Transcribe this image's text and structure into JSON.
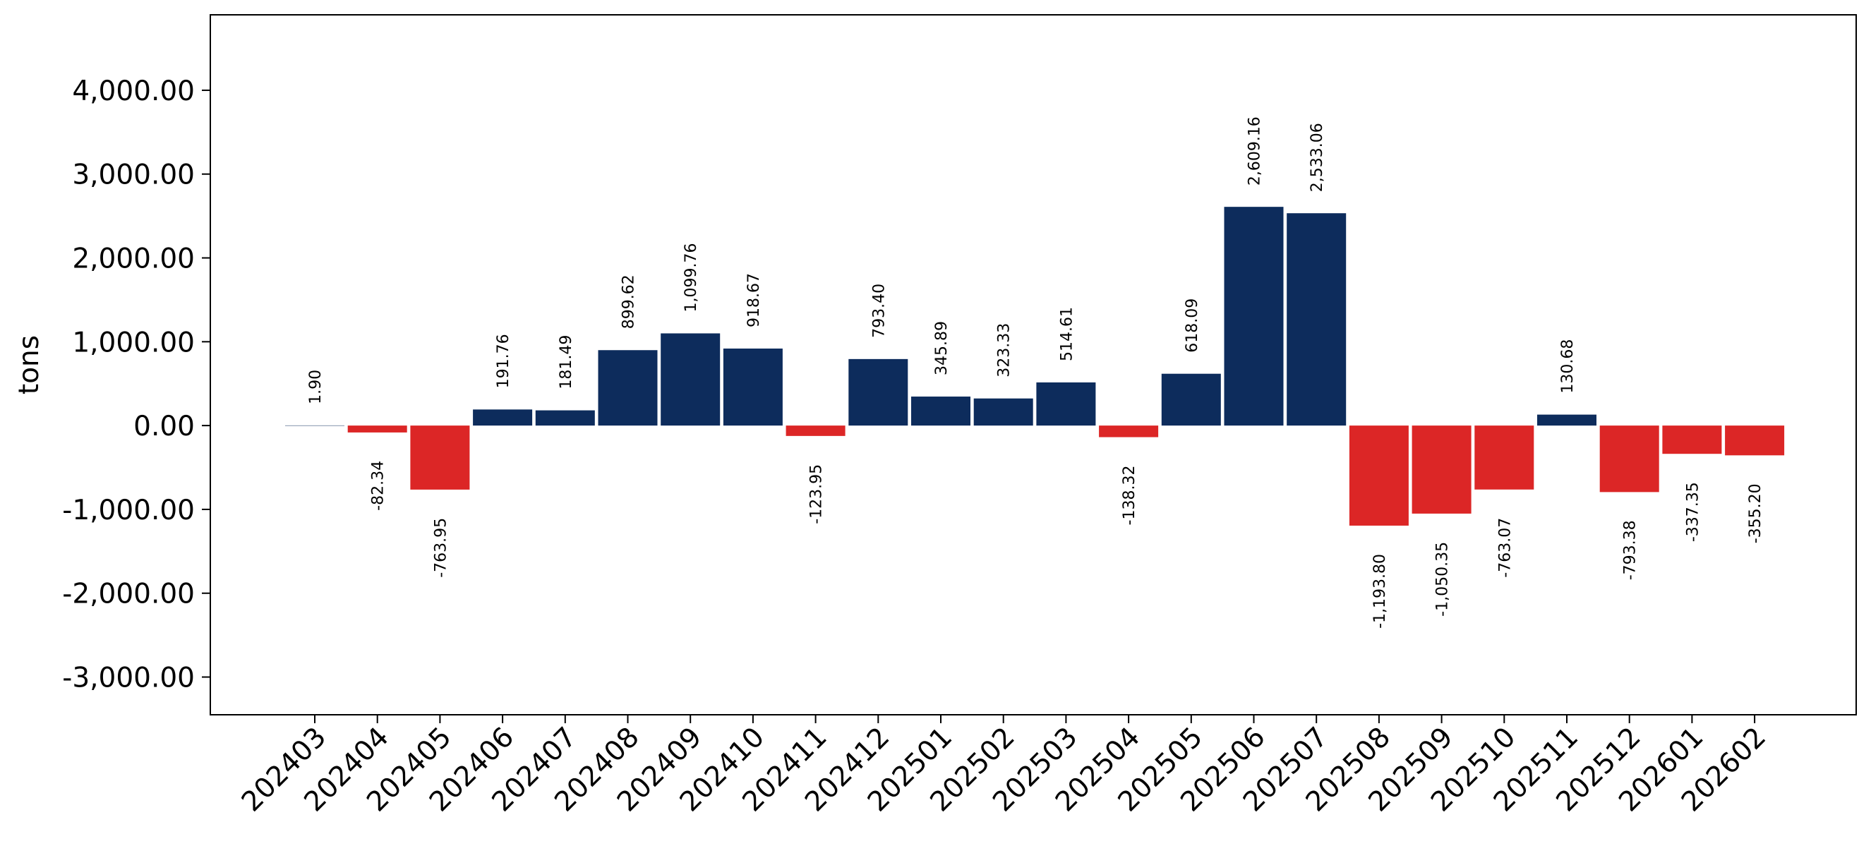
{
  "chart_data": {
    "type": "bar",
    "title": "",
    "xlabel": "",
    "ylabel": "tons",
    "ylim": [
      -3450,
      4900
    ],
    "yticks": [
      -3000,
      -2000,
      -1000,
      0,
      1000,
      2000,
      3000,
      4000
    ],
    "ytick_labels": [
      "-3,000.00",
      "-2,000.00",
      "-1,000.00",
      "0.00",
      "1,000.00",
      "2,000.00",
      "3,000.00",
      "4,000.00"
    ],
    "grid": false,
    "colors": {
      "positive": "#0d2c5c",
      "negative": "#dc2626"
    },
    "categories": [
      "202403",
      "202404",
      "202405",
      "202406",
      "202407",
      "202408",
      "202409",
      "202410",
      "202411",
      "202412",
      "202501",
      "202502",
      "202503",
      "202504",
      "202505",
      "202506",
      "202507",
      "202508",
      "202509",
      "202510",
      "202511",
      "202512",
      "202601",
      "202602"
    ],
    "values": [
      1.9,
      -82.34,
      -763.95,
      191.76,
      181.49,
      899.62,
      1099.76,
      918.67,
      -123.95,
      793.4,
      345.89,
      323.33,
      514.61,
      -138.32,
      618.09,
      2609.16,
      2533.06,
      -1193.8,
      -1050.35,
      -763.07,
      130.68,
      -793.38,
      -337.35,
      -355.2
    ],
    "data_labels": [
      "1.90",
      "-82.34",
      "-763.95",
      "191.76",
      "181.49",
      "899.62",
      "1,099.76",
      "918.67",
      "-123.95",
      "793.40",
      "345.89",
      "323.33",
      "514.61",
      "-138.32",
      "618.09",
      "2,609.16",
      "2,533.06",
      "-1,193.80",
      "-1,050.35",
      "-763.07",
      "130.68",
      "-793.38",
      "-337.35",
      "-355.20"
    ]
  }
}
